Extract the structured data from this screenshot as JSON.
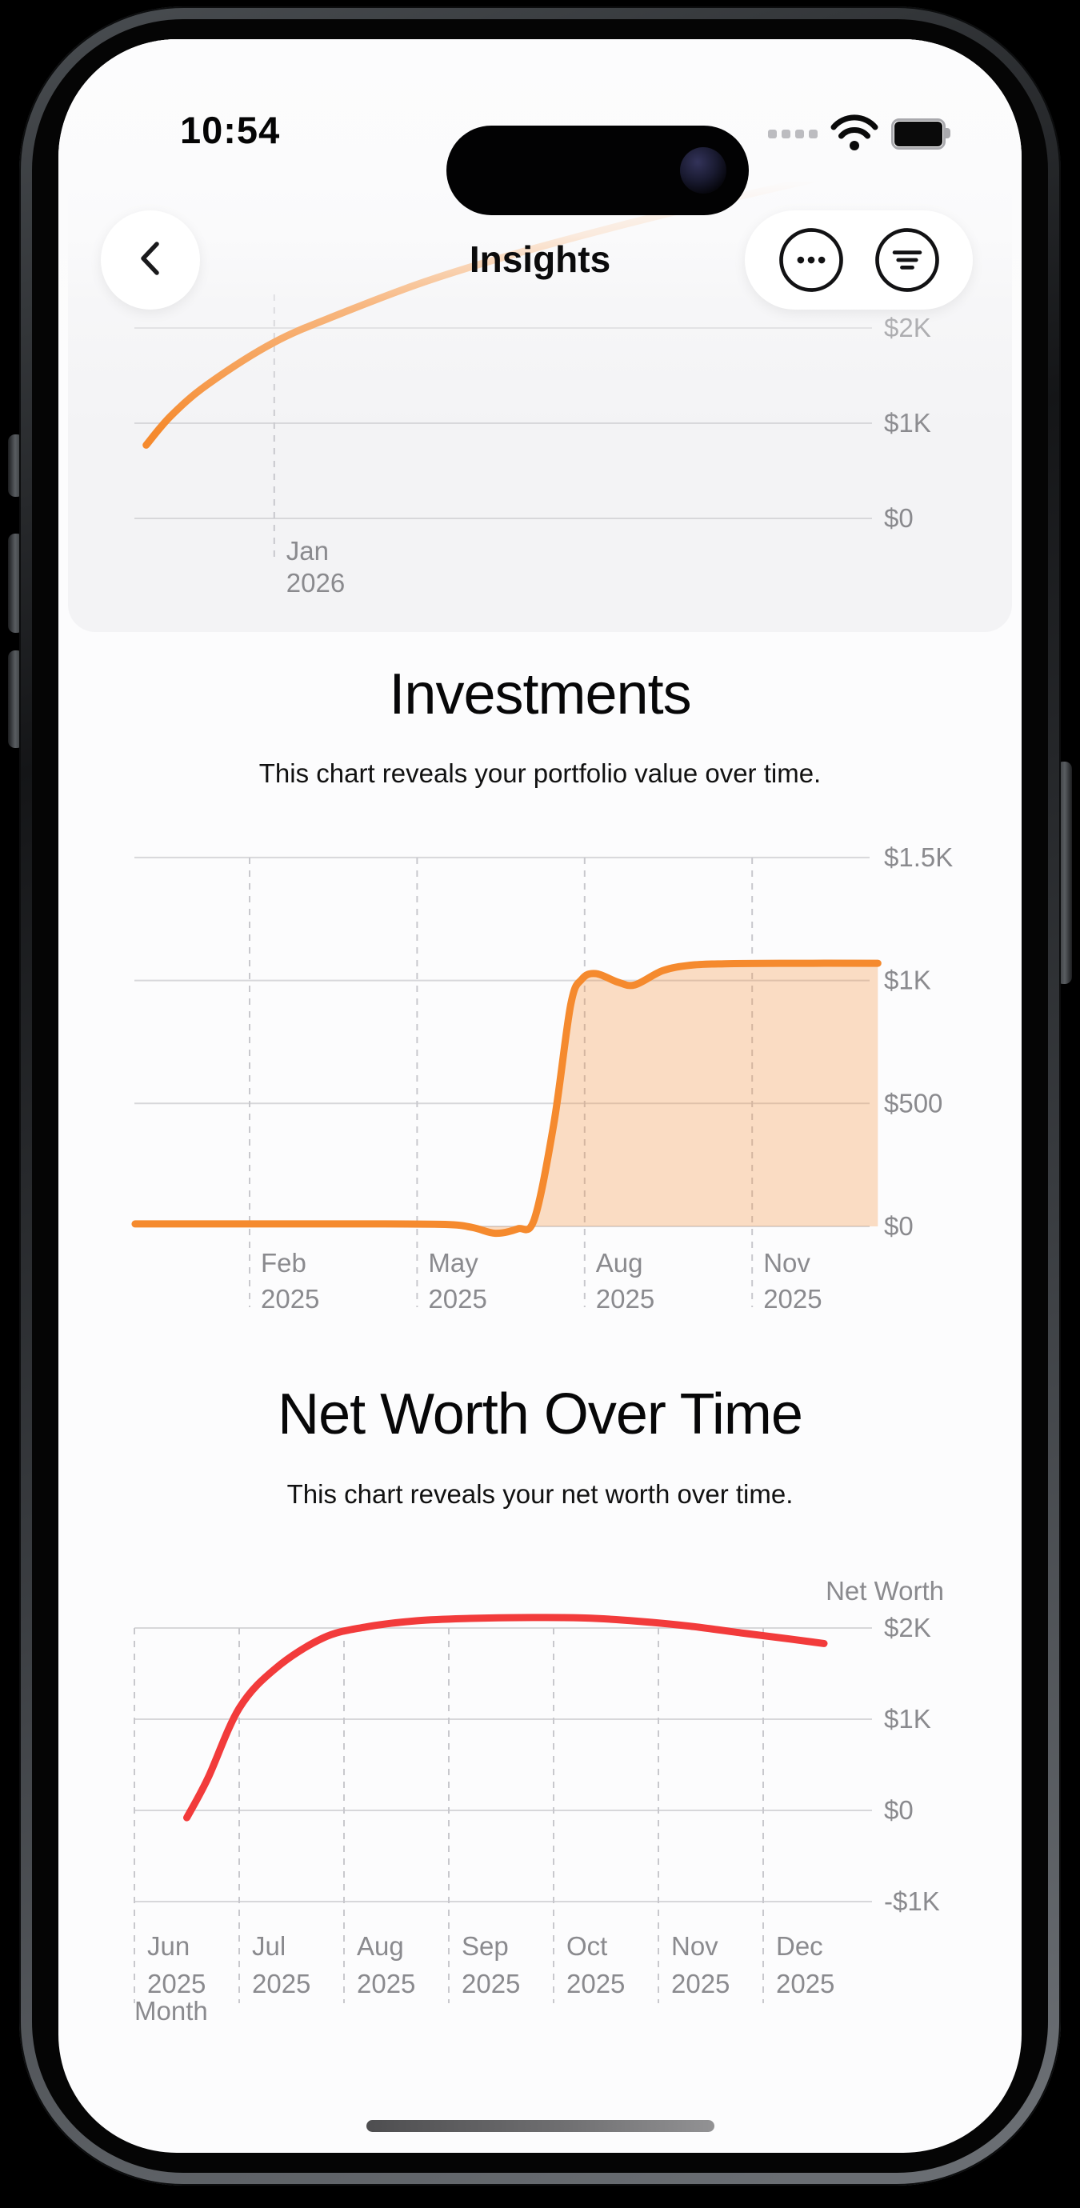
{
  "status_bar": {
    "time": "10:54",
    "icons": [
      "cellular-dots",
      "wifi",
      "battery-full"
    ]
  },
  "header": {
    "title": "Insights",
    "back_icon": "chevron-left",
    "more_icon": "ellipsis-circle",
    "filter_icon": "line-3-horizontal-decrease-circle"
  },
  "investments": {
    "title": "Investments",
    "subtitle": "This chart reveals your portfolio value over time."
  },
  "net_worth": {
    "title": "Net Worth Over Time",
    "subtitle": "This chart reveals your net worth over time."
  },
  "colors": {
    "accent_orange": "#F58A2E",
    "orange_fill": "rgba(245,138,46,0.28)",
    "accent_red": "#F23B3B",
    "grid": "#d7d7da",
    "grid_dash": "#c8c8cd",
    "axis_text": "#8a8a8e",
    "card_bg": "#f3f3f5"
  },
  "chart_data": [
    {
      "id": "portfolio_tail",
      "type": "line",
      "description": "top partial chart scrolled under header",
      "color_key": "accent_orange",
      "x_unit": "fraction",
      "ylim": [
        0,
        2300
      ],
      "yticks": [
        {
          "label": "$2K",
          "v": 2000
        },
        {
          "label": "$1K",
          "v": 1000
        },
        {
          "label": "$0",
          "v": 0
        }
      ],
      "xticks": [
        {
          "lines": [
            "Jan",
            "2026"
          ],
          "x": 0.19
        }
      ],
      "points": [
        [
          0.016,
          770
        ],
        [
          0.05,
          1080
        ],
        [
          0.1,
          1410
        ],
        [
          0.19,
          1850
        ],
        [
          0.28,
          2150
        ],
        [
          0.4,
          2500
        ],
        [
          0.55,
          2850
        ],
        [
          0.75,
          3250
        ],
        [
          1.0,
          3700
        ]
      ]
    },
    {
      "id": "investments",
      "type": "area",
      "color_key": "accent_orange",
      "fill_key": "orange_fill",
      "x_unit": "month",
      "ylim": [
        0,
        1500
      ],
      "yticks": [
        {
          "label": "$1.5K",
          "v": 1500
        },
        {
          "label": "$1K",
          "v": 1000
        },
        {
          "label": "$500",
          "v": 500
        },
        {
          "label": "$0",
          "v": 0
        }
      ],
      "xticks": [
        {
          "lines": [
            "Feb",
            "2025"
          ],
          "m": 1
        },
        {
          "lines": [
            "May",
            "2025"
          ],
          "m": 4
        },
        {
          "lines": [
            "Aug",
            "2025"
          ],
          "m": 7
        },
        {
          "lines": [
            "Nov",
            "2025"
          ],
          "m": 10
        }
      ],
      "points": [
        [
          -1.05,
          10
        ],
        [
          1,
          10
        ],
        [
          3,
          10
        ],
        [
          4.5,
          8
        ],
        [
          5.0,
          -5
        ],
        [
          5.4,
          -28
        ],
        [
          5.8,
          -10
        ],
        [
          6.1,
          30
        ],
        [
          6.45,
          420
        ],
        [
          6.75,
          900
        ],
        [
          6.95,
          1005
        ],
        [
          7.2,
          1028
        ],
        [
          7.6,
          993
        ],
        [
          7.9,
          982
        ],
        [
          8.4,
          1040
        ],
        [
          8.9,
          1062
        ],
        [
          9.5,
          1068
        ],
        [
          10.5,
          1070
        ],
        [
          12.25,
          1070
        ]
      ]
    },
    {
      "id": "net_worth",
      "type": "line",
      "legend": "Net Worth",
      "xlabel": "Month",
      "color_key": "accent_red",
      "x_unit": "month",
      "ylim": [
        -1000,
        2300
      ],
      "yticks": [
        {
          "label": "$2K",
          "v": 2000
        },
        {
          "label": "$1K",
          "v": 1000
        },
        {
          "label": "$0",
          "v": 0
        },
        {
          "label": "-$1K",
          "v": -1000
        }
      ],
      "xticks": [
        {
          "lines": [
            "Jun",
            "2025"
          ],
          "m": 0
        },
        {
          "lines": [
            "Jul",
            "2025"
          ],
          "m": 1
        },
        {
          "lines": [
            "Aug",
            "2025"
          ],
          "m": 2
        },
        {
          "lines": [
            "Sep",
            "2025"
          ],
          "m": 3
        },
        {
          "lines": [
            "Oct",
            "2025"
          ],
          "m": 4
        },
        {
          "lines": [
            "Nov",
            "2025"
          ],
          "m": 5
        },
        {
          "lines": [
            "Dec",
            "2025"
          ],
          "m": 6
        }
      ],
      "points": [
        [
          0.5,
          -80
        ],
        [
          0.7,
          350
        ],
        [
          1.0,
          1120
        ],
        [
          1.35,
          1560
        ],
        [
          1.8,
          1890
        ],
        [
          2.2,
          2010
        ],
        [
          2.7,
          2080
        ],
        [
          3.2,
          2105
        ],
        [
          3.8,
          2115
        ],
        [
          4.3,
          2110
        ],
        [
          4.8,
          2075
        ],
        [
          5.3,
          2020
        ],
        [
          5.8,
          1945
        ],
        [
          6.25,
          1880
        ],
        [
          6.58,
          1830
        ]
      ]
    }
  ]
}
